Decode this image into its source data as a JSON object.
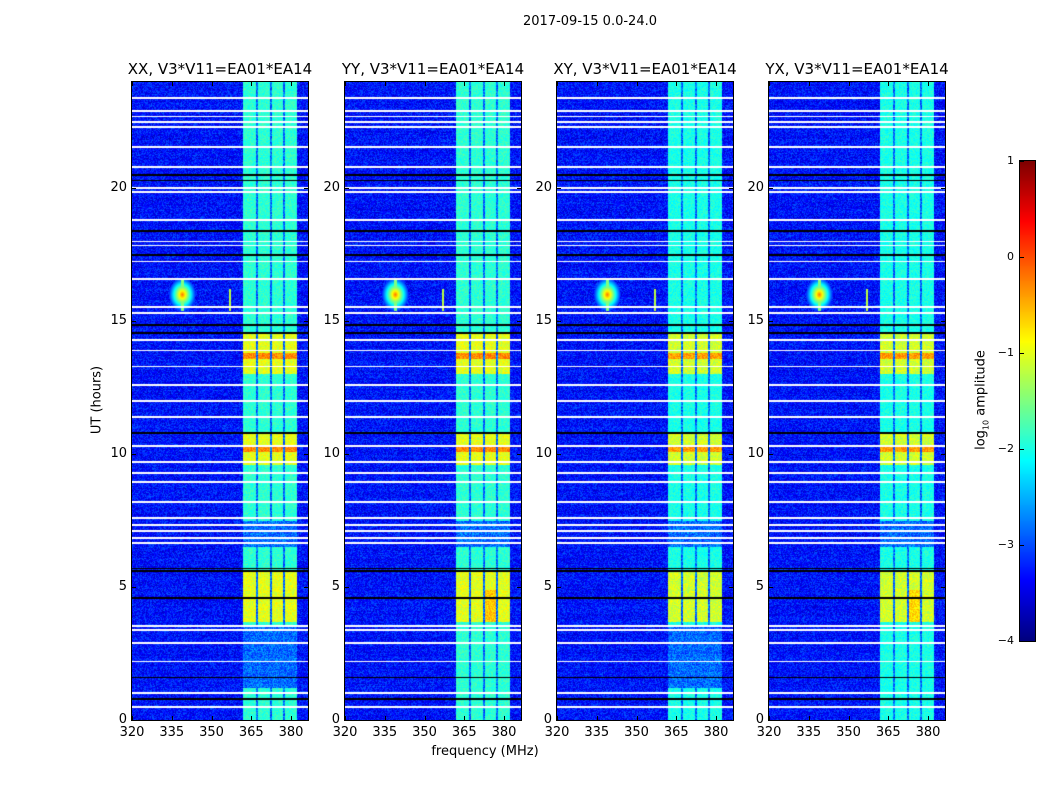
{
  "chart_data": {
    "type": "heatmap",
    "title": "2017-09-15 0.0-24.0",
    "xlabel": "frequency (MHz)",
    "ylabel": "UT (hours)",
    "xlim": [
      320,
      386.4
    ],
    "ylim": [
      0,
      24
    ],
    "xticks": [
      320,
      335,
      350,
      365,
      380
    ],
    "yticks": [
      0,
      5,
      10,
      15,
      20
    ],
    "panels": [
      {
        "title": "XX, V3*V11=EA01*EA14"
      },
      {
        "title": "YY, V3*V11=EA01*EA14"
      },
      {
        "title": "XY, V3*V11=EA01*EA14"
      },
      {
        "title": "YX, V3*V11=EA01*EA14"
      }
    ],
    "colorbar": {
      "label_prefix": "log",
      "label_sub": "10",
      "label_suffix": " amplitude",
      "colormap": "jet",
      "range": [
        -4,
        1
      ],
      "ticks": [
        -4,
        -3,
        -2,
        -1,
        0,
        1
      ],
      "tick_labels": [
        "−4",
        "−3",
        "−2",
        "−1",
        "0",
        "1"
      ]
    },
    "features": {
      "background_level": -3.3,
      "signal_bands_mhz": [
        [
          362,
          366.8
        ],
        [
          367.6,
          372
        ],
        [
          372.8,
          377
        ],
        [
          377.8,
          382.4
        ]
      ],
      "strong_time_ranges_h": [
        [
          13.0,
          14.6
        ],
        [
          9.6,
          10.8
        ],
        [
          3.7,
          5.6
        ]
      ],
      "rfi_source": {
        "freq_mhz": 339,
        "time_h": 16.0
      },
      "rfi_source_2": {
        "freq_mhz": 357,
        "time_h": 15.8
      },
      "flagged_white_hours": [
        0.5,
        1.0,
        2.2,
        2.9,
        3.4,
        3.55,
        6.65,
        6.85,
        7.1,
        7.35,
        7.6,
        8.2,
        8.95,
        9.3,
        9.7,
        10.3,
        11.4,
        12.0,
        12.6,
        13.3,
        13.9,
        14.3,
        15.3,
        15.55,
        16.6,
        17.25,
        17.85,
        18.0,
        18.8,
        19.85,
        20.0,
        20.8,
        21.55,
        22.3,
        22.5,
        22.7,
        22.9,
        23.4
      ],
      "flagged_black_hours": [
        0.8,
        1.6,
        4.6,
        5.6,
        5.7,
        10.8,
        14.55,
        14.85,
        17.5,
        18.4,
        20.3,
        20.5
      ]
    }
  }
}
